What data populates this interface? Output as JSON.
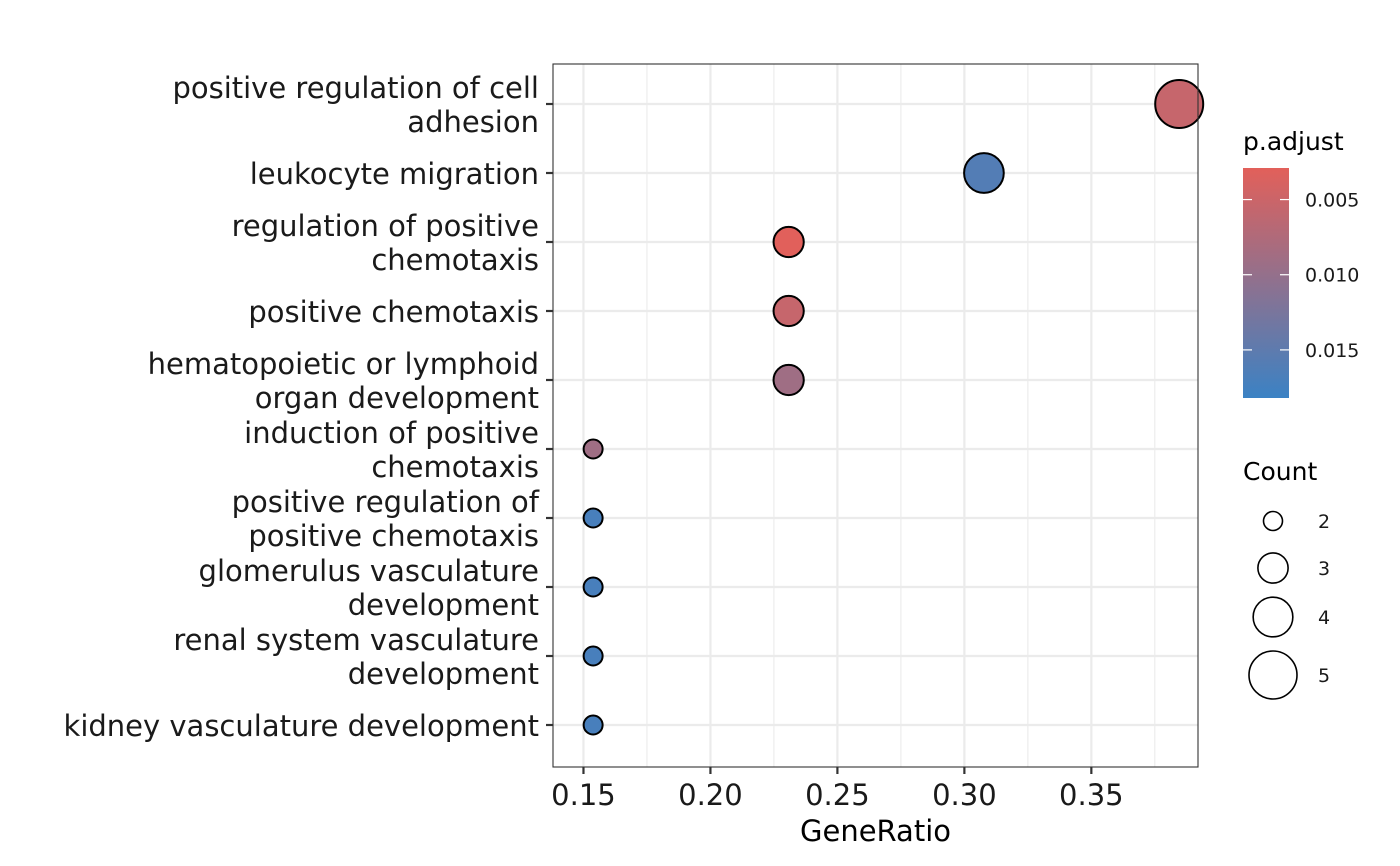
{
  "chart_data": {
    "type": "scatter",
    "title": "",
    "xlabel": "GeneRatio",
    "ylabel": "",
    "xlim": [
      0.138,
      0.392
    ],
    "xticks": [
      0.15,
      0.2,
      0.25,
      0.3,
      0.35
    ],
    "xtick_labels": [
      "0.15",
      "0.20",
      "0.25",
      "0.30",
      "0.35"
    ],
    "grid": true,
    "categories": [
      [
        "positive regulation of cell",
        "adhesion"
      ],
      [
        "leukocyte migration"
      ],
      [
        "regulation of positive",
        "chemotaxis"
      ],
      [
        "positive chemotaxis"
      ],
      [
        "hematopoietic or lymphoid",
        "organ development"
      ],
      [
        "induction of positive",
        "chemotaxis"
      ],
      [
        "positive regulation of",
        "positive chemotaxis"
      ],
      [
        "glomerulus vasculature",
        "development"
      ],
      [
        "renal system vasculature",
        "development"
      ],
      [
        "kidney vasculature development"
      ]
    ],
    "points": [
      {
        "gene_ratio": 0.3846,
        "count": 5,
        "p_adjust": 0.0055
      },
      {
        "gene_ratio": 0.3077,
        "count": 4,
        "p_adjust": 0.016
      },
      {
        "gene_ratio": 0.2308,
        "count": 3,
        "p_adjust": 0.003
      },
      {
        "gene_ratio": 0.2308,
        "count": 3,
        "p_adjust": 0.0055
      },
      {
        "gene_ratio": 0.2308,
        "count": 3,
        "p_adjust": 0.009
      },
      {
        "gene_ratio": 0.1538,
        "count": 2,
        "p_adjust": 0.009
      },
      {
        "gene_ratio": 0.1538,
        "count": 2,
        "p_adjust": 0.017
      },
      {
        "gene_ratio": 0.1538,
        "count": 2,
        "p_adjust": 0.017
      },
      {
        "gene_ratio": 0.1538,
        "count": 2,
        "p_adjust": 0.017
      },
      {
        "gene_ratio": 0.1538,
        "count": 2,
        "p_adjust": 0.017
      }
    ],
    "color_legend": {
      "title": "p.adjust",
      "range": [
        0.0029,
        0.0182
      ],
      "low_color": "#e2605a",
      "high_color": "#3b82c4",
      "ticks": [
        0.005,
        0.01,
        0.015
      ],
      "tick_labels": [
        "0.005",
        "0.010",
        "0.015"
      ],
      "placement": "right"
    },
    "size_legend": {
      "title": "Count",
      "values": [
        2,
        3,
        4,
        5
      ],
      "labels": [
        "2",
        "3",
        "4",
        "5"
      ],
      "placement": "right"
    }
  }
}
